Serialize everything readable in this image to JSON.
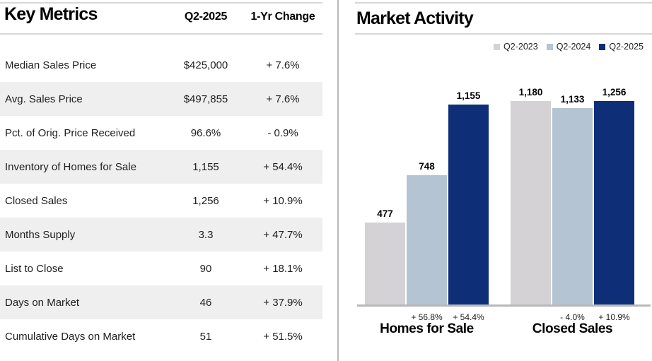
{
  "left_panel": {
    "title": "Key Metrics",
    "columns": {
      "period": "Q2-2025",
      "change": "1-Yr Change"
    },
    "rows": [
      {
        "label": "Median Sales Price",
        "value": "$425,000",
        "change": "+ 7.6%"
      },
      {
        "label": "Avg. Sales Price",
        "value": "$497,855",
        "change": "+ 7.6%"
      },
      {
        "label": "Pct. of Orig. Price Received",
        "value": "96.6%",
        "change": "- 0.9%"
      },
      {
        "label": "Inventory of Homes for Sale",
        "value": "1,155",
        "change": "+ 54.4%"
      },
      {
        "label": "Closed Sales",
        "value": "1,256",
        "change": "+ 10.9%"
      },
      {
        "label": "Months Supply",
        "value": "3.3",
        "change": "+ 47.7%"
      },
      {
        "label": "List to Close",
        "value": "90",
        "change": "+ 18.1%"
      },
      {
        "label": "Days on Market",
        "value": "46",
        "change": "+ 37.9%"
      },
      {
        "label": "Cumulative Days on Market",
        "value": "51",
        "change": "+ 51.5%"
      }
    ]
  },
  "right_panel": {
    "title": "Market Activity"
  },
  "chart_data": {
    "type": "bar",
    "title": "Market Activity",
    "legend_position": "top-right",
    "grid": false,
    "ylim": [
      0,
      1300
    ],
    "categories": [
      "Homes for Sale",
      "Closed Sales"
    ],
    "series": [
      {
        "name": "Q2-2023",
        "color": "#d5d2d6"
      },
      {
        "name": "Q2-2024",
        "color": "#b4c4d2"
      },
      {
        "name": "Q2-2025",
        "color": "#0e2f78"
      }
    ],
    "groups": [
      {
        "category": "Homes for Sale",
        "bars": [
          {
            "series": "Q2-2023",
            "value": 477,
            "value_label": "477",
            "pct_change": ""
          },
          {
            "series": "Q2-2024",
            "value": 748,
            "value_label": "748",
            "pct_change": "+ 56.8%"
          },
          {
            "series": "Q2-2025",
            "value": 1155,
            "value_label": "1,155",
            "pct_change": "+ 54.4%"
          }
        ]
      },
      {
        "category": "Closed Sales",
        "bars": [
          {
            "series": "Q2-2023",
            "value": 1180,
            "value_label": "1,180",
            "pct_change": ""
          },
          {
            "series": "Q2-2024",
            "value": 1133,
            "value_label": "1,133",
            "pct_change": "- 4.0%"
          },
          {
            "series": "Q2-2025",
            "value": 1256,
            "value_label": "1,256",
            "pct_change": "+ 10.9%"
          }
        ]
      }
    ]
  }
}
